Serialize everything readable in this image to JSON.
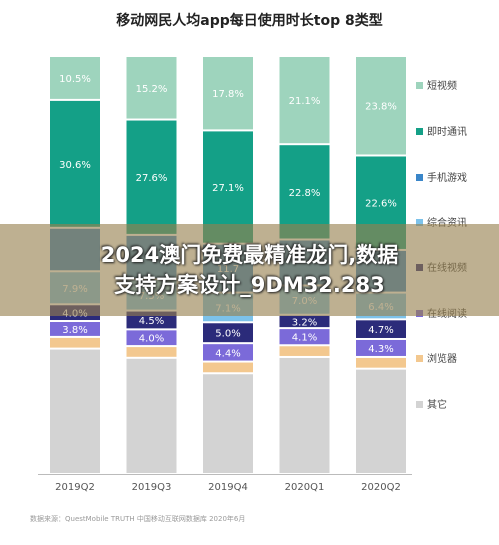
{
  "chart_data": {
    "type": "bar",
    "stacked": true,
    "normalized_percent": true,
    "title": "移动网民人均app每日使用时长top 8类型",
    "categories": [
      "2019Q2",
      "2019Q3",
      "2019Q4",
      "2020Q1",
      "2020Q2"
    ],
    "series": [
      {
        "name": "其它",
        "color": "#d3d3d3",
        "values": [
          null,
          null,
          null,
          null,
          null
        ],
        "labels": [
          "",
          "",
          "",
          "",
          ""
        ]
      },
      {
        "name": "浏览器",
        "color": "#f3c88f",
        "values": [
          2.8,
          2.8,
          2.8,
          2.8,
          2.8
        ],
        "labels": [
          "",
          "",
          "",
          "",
          ""
        ]
      },
      {
        "name": "在线阅读",
        "color": "#7b6ad9",
        "values": [
          3.8,
          4.0,
          4.4,
          4.1,
          4.3
        ],
        "labels": [
          "3.8%",
          "4.0%",
          "4.4%",
          "4.1%",
          "4.3%"
        ]
      },
      {
        "name": "在线视频",
        "color": "#2b2b7a",
        "values": [
          4.0,
          4.5,
          5.0,
          3.2,
          4.7
        ],
        "labels": [
          "4.0%",
          "4.5%",
          "5.0%",
          "3.2%",
          "4.7%"
        ]
      },
      {
        "name": "综合资讯",
        "color": "#7cc2ea",
        "values": [
          7.9,
          7.5,
          7.1,
          7.0,
          6.4
        ],
        "labels": [
          "7.9%",
          "7.5%",
          "7.1%",
          "7.0%",
          "6.4%"
        ]
      },
      {
        "name": "手机游戏",
        "color": "#3a86c9",
        "values": [
          10.4,
          10.6,
          11.7,
          11.0,
          10.2
        ],
        "labels": [
          "",
          "",
          "11.7",
          "",
          ""
        ]
      },
      {
        "name": "即时通讯",
        "color": "#14a087",
        "values": [
          30.6,
          27.6,
          27.1,
          22.8,
          22.6
        ],
        "labels": [
          "30.6%",
          "27.6%",
          "27.1%",
          "22.8%",
          "22.6%"
        ]
      },
      {
        "name": "短视频",
        "color": "#9ed4bd",
        "values": [
          10.5,
          15.2,
          17.8,
          21.1,
          23.8
        ],
        "labels": [
          "10.5%",
          "15.2%",
          "17.8%",
          "21.1%",
          "23.8%"
        ]
      }
    ]
  },
  "overlay": {
    "line1": "2024澳门免费最精准龙门,数据",
    "line2": "支持方案设计_9DM32.283"
  },
  "source_note": "数据来源：QuestMobile TRUTH 中国移动互联网数据库 2020年6月"
}
